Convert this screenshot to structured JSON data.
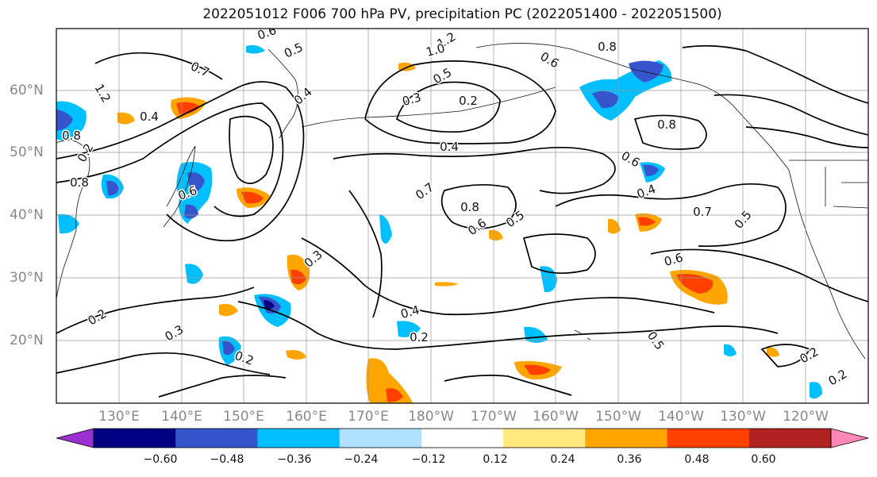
{
  "title": "2022051012 F006 700 hPa PV, precipitation PC (2022051400 - 2022051500)",
  "map": {
    "lat_labels": [
      "60°N",
      "50°N",
      "40°N",
      "30°N",
      "20°N"
    ],
    "lon_labels": [
      "130°E",
      "140°E",
      "150°E",
      "160°E",
      "170°E",
      "180°W",
      "170°W",
      "160°W",
      "150°W",
      "140°W",
      "130°W",
      "120°W"
    ],
    "contour_labels": [
      "0.6",
      "0.5",
      "1.2",
      "1.0",
      "0.7",
      "0.4",
      "0.2",
      "0.3",
      "0.8",
      "0.6",
      "0.5",
      "0.4",
      "0.8",
      "0.2",
      "0.4",
      "0.6",
      "0.7",
      "0.8",
      "0.6",
      "0.5",
      "0.3",
      "0.4",
      "0.2",
      "0.2",
      "0.3",
      "0.2",
      "0.6",
      "0.7",
      "0.5",
      "0.4",
      "0.5",
      "0.2",
      "0.2",
      "0.8",
      "1.2",
      "0.8",
      "0.6"
    ]
  },
  "colorbar": {
    "ticks": [
      "−0.60",
      "−0.48",
      "−0.36",
      "−0.24",
      "−0.12",
      "0.12",
      "0.24",
      "0.36",
      "0.48",
      "0.60"
    ],
    "colors": [
      "#9b30d0",
      "#000080",
      "#3655cc",
      "#00bfff",
      "#b0e0ff",
      "#ffffff",
      "#ffe97f",
      "#ffa500",
      "#ff4000",
      "#b22222",
      "#ff88b8"
    ]
  }
}
